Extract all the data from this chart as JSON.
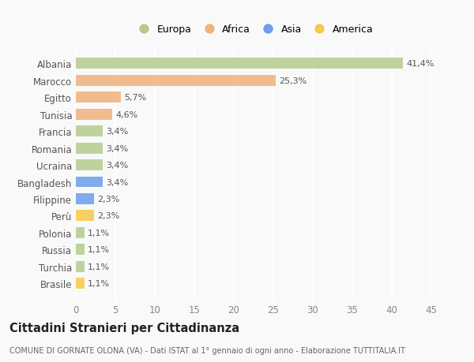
{
  "categories": [
    "Albania",
    "Marocco",
    "Egitto",
    "Tunisia",
    "Francia",
    "Romania",
    "Ucraina",
    "Bangladesh",
    "Filippine",
    "Perù",
    "Polonia",
    "Russia",
    "Turchia",
    "Brasile"
  ],
  "values": [
    41.4,
    25.3,
    5.7,
    4.6,
    3.4,
    3.4,
    3.4,
    3.4,
    2.3,
    2.3,
    1.1,
    1.1,
    1.1,
    1.1
  ],
  "labels": [
    "41,4%",
    "25,3%",
    "5,7%",
    "4,6%",
    "3,4%",
    "3,4%",
    "3,4%",
    "3,4%",
    "2,3%",
    "2,3%",
    "1,1%",
    "1,1%",
    "1,1%",
    "1,1%"
  ],
  "colors": [
    "#b5cc8e",
    "#f0b27a",
    "#f0b27a",
    "#f0b27a",
    "#b5cc8e",
    "#b5cc8e",
    "#b5cc8e",
    "#6d9eeb",
    "#6d9eeb",
    "#f7c948",
    "#b5cc8e",
    "#b5cc8e",
    "#b5cc8e",
    "#f7c948"
  ],
  "legend_labels": [
    "Europa",
    "Africa",
    "Asia",
    "America"
  ],
  "legend_colors": [
    "#b5cc8e",
    "#f0b27a",
    "#6d9eeb",
    "#f7c948"
  ],
  "xlim": [
    0,
    45
  ],
  "xticks": [
    0,
    5,
    10,
    15,
    20,
    25,
    30,
    35,
    40,
    45
  ],
  "title": "Cittadini Stranieri per Cittadinanza",
  "subtitle": "COMUNE DI GORNATE OLONA (VA) - Dati ISTAT al 1° gennaio di ogni anno - Elaborazione TUTTITALIA.IT",
  "background_color": "#f9f9f9",
  "grid_color": "#ffffff",
  "bar_height": 0.65,
  "label_fontsize": 8,
  "ytick_fontsize": 8.5,
  "xtick_fontsize": 8.5
}
